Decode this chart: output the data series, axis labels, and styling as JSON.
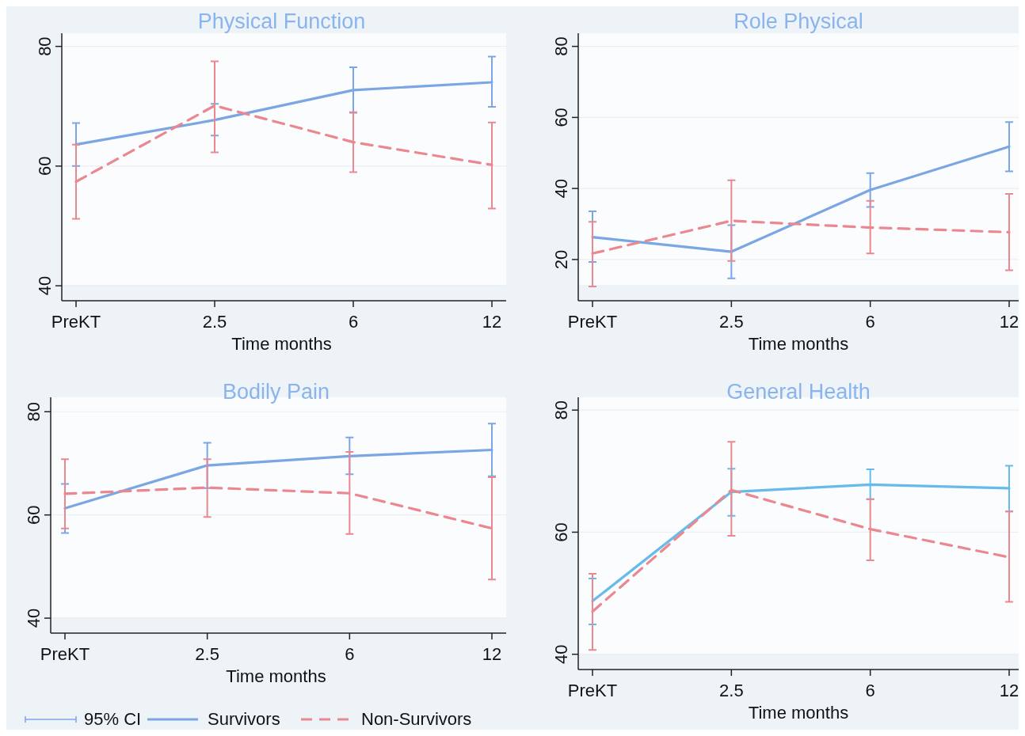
{
  "chart_data": [
    {
      "type": "line",
      "title": "Physical Function",
      "xlabel": "Time months",
      "categories": [
        "PreKT",
        "2.5",
        "6",
        "12"
      ],
      "ylim": [
        37.5,
        82.2
      ],
      "yticks": [
        40,
        60,
        80
      ],
      "grid": "y",
      "legend": false,
      "series": [
        {
          "color": "#7aa6e4",
          "line_style": "solid",
          "values": [
            63.6,
            67.7,
            72.7,
            74.0
          ],
          "errors": [
            [
              60.0,
              67.2
            ],
            [
              65.1,
              70.4
            ],
            [
              68.9,
              76.5
            ],
            [
              69.9,
              78.3
            ]
          ]
        },
        {
          "color": "#ea8790",
          "line_style": "dashed",
          "values": [
            57.4,
            70.1,
            64.0,
            60.2
          ],
          "errors": [
            [
              51.2,
              63.6
            ],
            [
              62.3,
              77.5
            ],
            [
              59.0,
              69.0
            ],
            [
              52.9,
              67.3
            ]
          ]
        }
      ]
    },
    {
      "type": "line",
      "title": "Role Physical",
      "xlabel": "Time months",
      "categories": [
        "PreKT",
        "2.5",
        "6",
        "12"
      ],
      "ylim": [
        8.4,
        83.7
      ],
      "yticks": [
        20,
        40,
        60,
        80
      ],
      "grid": "y",
      "legend": false,
      "series": [
        {
          "color": "#7aa6e4",
          "line_style": "solid",
          "values": [
            26.3,
            22.2,
            39.6,
            51.8
          ],
          "errors": [
            [
              19.3,
              33.6
            ],
            [
              14.7,
              29.7
            ],
            [
              34.8,
              44.3
            ],
            [
              44.8,
              58.7
            ]
          ]
        },
        {
          "color": "#ea8790",
          "line_style": "dashed",
          "values": [
            21.7,
            30.9,
            29.0,
            27.7
          ],
          "errors": [
            [
              12.4,
              30.6
            ],
            [
              19.6,
              42.3
            ],
            [
              21.7,
              36.5
            ],
            [
              17.0,
              38.5
            ]
          ]
        }
      ]
    },
    {
      "type": "line",
      "title": "Bodily Pain",
      "xlabel": "Time months",
      "categories": [
        "PreKT",
        "2.5",
        "6",
        "12"
      ],
      "ylim": [
        37.1,
        82.8
      ],
      "yticks": [
        40,
        60,
        80
      ],
      "grid": "y",
      "legend": "bottom",
      "legend_title": "95% CI",
      "series": [
        {
          "name": "Survivors",
          "color": "#7aa6e4",
          "line_style": "solid",
          "values": [
            61.3,
            69.6,
            71.4,
            72.6
          ],
          "errors": [
            [
              56.5,
              66.0
            ],
            [
              65.2,
              74.0
            ],
            [
              67.9,
              75.0
            ],
            [
              67.5,
              77.7
            ]
          ]
        },
        {
          "name": "Non-Survivors",
          "color": "#ea8790",
          "line_style": "dashed",
          "values": [
            64.1,
            65.3,
            64.2,
            57.4
          ],
          "errors": [
            [
              57.4,
              70.8
            ],
            [
              59.6,
              70.8
            ],
            [
              56.3,
              72.2
            ],
            [
              47.5,
              67.3
            ]
          ]
        }
      ]
    },
    {
      "type": "line",
      "title": "General Health",
      "xlabel": "Time months",
      "categories": [
        "PreKT",
        "2.5",
        "6",
        "12"
      ],
      "ylim": [
        37.5,
        82.1
      ],
      "yticks": [
        40,
        60,
        80
      ],
      "grid": "y",
      "legend": false,
      "series": [
        {
          "color": "#66bbea",
          "line_style": "solid",
          "values": [
            48.7,
            66.6,
            67.8,
            67.2
          ],
          "errors": [
            [
              44.9,
              52.4
            ],
            [
              62.7,
              70.4
            ],
            [
              65.4,
              70.3
            ],
            [
              63.4,
              70.9
            ]
          ]
        },
        {
          "color": "#ea8790",
          "line_style": "dashed",
          "values": [
            47.0,
            66.9,
            60.5,
            55.9
          ],
          "errors": [
            [
              40.7,
              53.2
            ],
            [
              59.4,
              74.8
            ],
            [
              55.4,
              65.4
            ],
            [
              48.6,
              63.4
            ]
          ]
        }
      ]
    }
  ]
}
